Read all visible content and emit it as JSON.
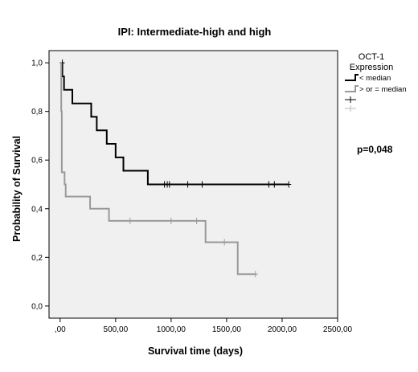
{
  "chart_data": {
    "type": "line",
    "title": "IPI: Intermediate-high and high",
    "xlabel": "Survival time (days)",
    "ylabel": "Probability of Survival",
    "xlim": [
      -100,
      2500
    ],
    "ylim": [
      -0.05,
      1.05
    ],
    "x_ticks": [
      0,
      500,
      1000,
      1500,
      2000,
      2500
    ],
    "x_tick_labels": [
      ",00",
      "500,00",
      "1000,00",
      "1500,00",
      "2000,00",
      "2500,00"
    ],
    "y_ticks": [
      0,
      0.2,
      0.4,
      0.6,
      0.8,
      1.0
    ],
    "y_tick_labels": [
      "0,0",
      "0,2",
      "0,4",
      "0,6",
      "0,8",
      "1,0"
    ],
    "background": "#f0f0f0",
    "grid": false,
    "legend": {
      "title_line1": "OCT-1",
      "title_line2": "Expression",
      "placement": "right",
      "entries": [
        "< median",
        "> or = median",
        "",
        ""
      ]
    },
    "annotation": "p=0,048",
    "series": [
      {
        "name": "< median",
        "color": "#000000",
        "steps": [
          [
            0,
            1.0
          ],
          [
            20,
            0.944
          ],
          [
            35,
            0.889
          ],
          [
            110,
            0.833
          ],
          [
            280,
            0.778
          ],
          [
            330,
            0.722
          ],
          [
            420,
            0.667
          ],
          [
            500,
            0.611
          ],
          [
            570,
            0.556
          ],
          [
            790,
            0.5
          ],
          [
            2060,
            0.5
          ]
        ],
        "censored": [
          [
            20,
            1.0
          ],
          [
            940,
            0.5
          ],
          [
            965,
            0.5
          ],
          [
            985,
            0.5
          ],
          [
            1150,
            0.5
          ],
          [
            1280,
            0.5
          ],
          [
            1880,
            0.5
          ],
          [
            1930,
            0.5
          ],
          [
            2060,
            0.5
          ]
        ]
      },
      {
        "name": "> or = median",
        "color": "#999999",
        "steps": [
          [
            0,
            1.0
          ],
          [
            10,
            0.8
          ],
          [
            15,
            0.55
          ],
          [
            40,
            0.5
          ],
          [
            50,
            0.45
          ],
          [
            270,
            0.4
          ],
          [
            440,
            0.35
          ],
          [
            1310,
            0.262
          ],
          [
            1600,
            0.131
          ],
          [
            1760,
            0.131
          ]
        ],
        "censored": [
          [
            630,
            0.35
          ],
          [
            1000,
            0.35
          ],
          [
            1230,
            0.35
          ],
          [
            1480,
            0.262
          ],
          [
            1760,
            0.131
          ]
        ]
      }
    ]
  }
}
